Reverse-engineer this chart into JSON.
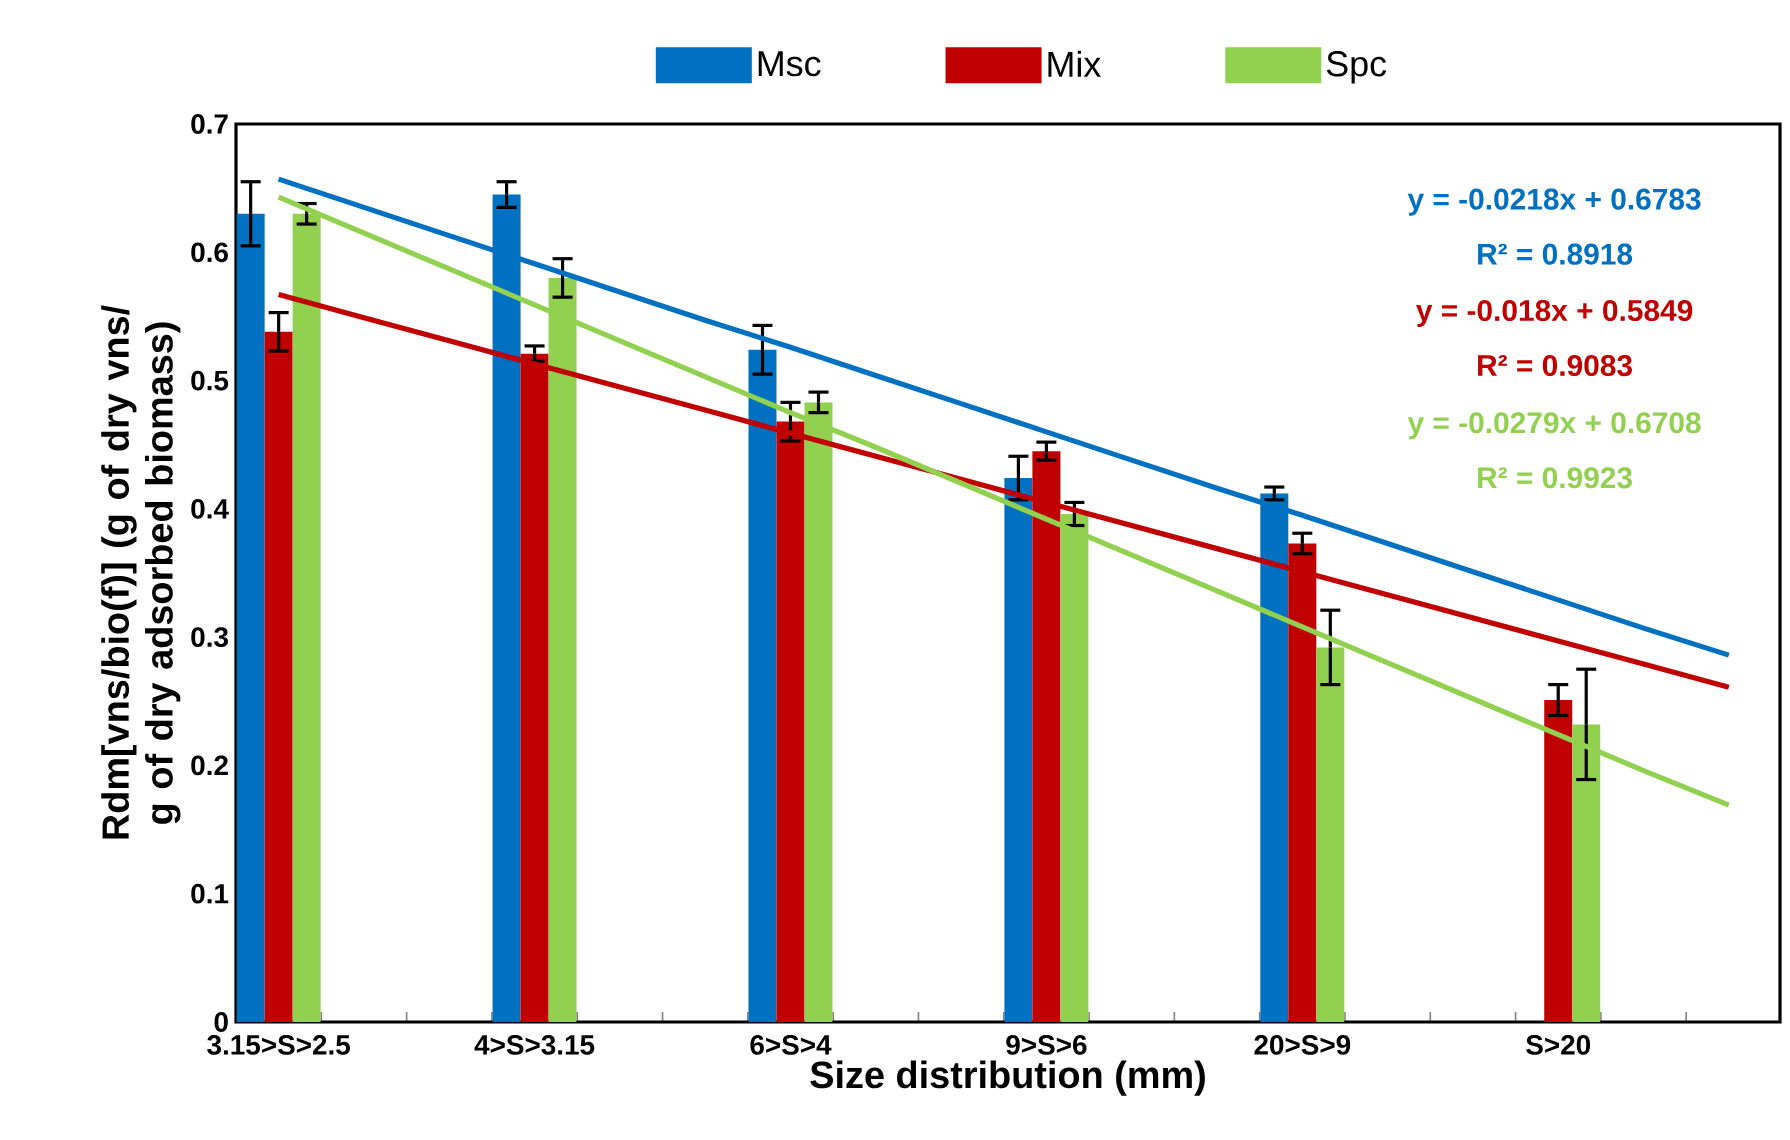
{
  "chart_data": {
    "type": "bar",
    "xlabel": "Size distribution (mm)",
    "ylabel": "Rdm[vns/bio(f)] (g of dry vns/ g of dry adsorbed biomass)",
    "categories": [
      "3.15>S>2.5",
      null,
      null,
      "4>S>3.15",
      null,
      null,
      "6>S>4",
      null,
      null,
      "9>S>6",
      null,
      null,
      "20>S>9",
      null,
      null,
      "S>20",
      null,
      null
    ],
    "ylim": [
      0,
      0.7
    ],
    "yticks": [
      0,
      0.1,
      0.2,
      0.3,
      0.4,
      0.5,
      0.6,
      0.7
    ],
    "legend": "top",
    "series": [
      {
        "name": "Msc",
        "color": "#0070c0",
        "values": [
          0.63,
          null,
          null,
          0.645,
          null,
          null,
          0.524,
          null,
          null,
          0.424,
          null,
          null,
          0.412,
          null,
          null,
          null,
          null,
          null
        ],
        "errors": [
          0.025,
          null,
          null,
          0.01,
          null,
          null,
          0.019,
          null,
          null,
          0.017,
          null,
          null,
          0.005,
          null,
          null,
          null,
          null,
          null
        ]
      },
      {
        "name": "Mix",
        "color": "#c00000",
        "values": [
          0.538,
          null,
          null,
          0.521,
          null,
          null,
          0.468,
          null,
          null,
          0.445,
          null,
          null,
          0.373,
          null,
          null,
          0.251,
          null,
          null
        ],
        "errors": [
          0.015,
          null,
          null,
          0.006,
          null,
          null,
          0.015,
          null,
          null,
          0.007,
          null,
          null,
          0.008,
          null,
          null,
          0.012,
          null,
          null
        ]
      },
      {
        "name": "Spc",
        "color": "#92d050",
        "values": [
          0.63,
          null,
          null,
          0.58,
          null,
          null,
          0.483,
          null,
          null,
          0.396,
          null,
          null,
          0.292,
          null,
          null,
          0.232,
          null,
          null
        ],
        "errors": [
          0.008,
          null,
          null,
          0.015,
          null,
          null,
          0.008,
          null,
          null,
          0.009,
          null,
          null,
          0.029,
          null,
          null,
          0.043,
          null,
          null
        ]
      },
      {
        "type": "line",
        "color": "#0070c0",
        "values": [
          0.657,
          0.635,
          0.613,
          0.591,
          0.569,
          0.547,
          0.526,
          0.504,
          0.482,
          0.46,
          0.438,
          0.416,
          0.395,
          0.373,
          0.351,
          0.329,
          0.307,
          0.286
        ]
      },
      {
        "type": "line",
        "color": "#c00000",
        "values": [
          0.567,
          0.549,
          0.531,
          0.513,
          0.495,
          0.477,
          0.459,
          0.441,
          0.423,
          0.405,
          0.387,
          0.369,
          0.351,
          0.333,
          0.315,
          0.297,
          0.279,
          0.261
        ]
      },
      {
        "type": "line",
        "color": "#92d050",
        "values": [
          0.643,
          0.615,
          0.587,
          0.559,
          0.531,
          0.503,
          0.475,
          0.448,
          0.42,
          0.392,
          0.364,
          0.336,
          0.308,
          0.28,
          0.252,
          0.224,
          0.196,
          0.169
        ]
      }
    ],
    "annotations": [
      "y = -0.0218x + 0.6783",
      "R² = 0.8918",
      "y = -0.018x + 0.5849",
      "R² = 0.9083",
      "y = -0.0279x + 0.6708",
      "R² = 0.9923"
    ]
  }
}
